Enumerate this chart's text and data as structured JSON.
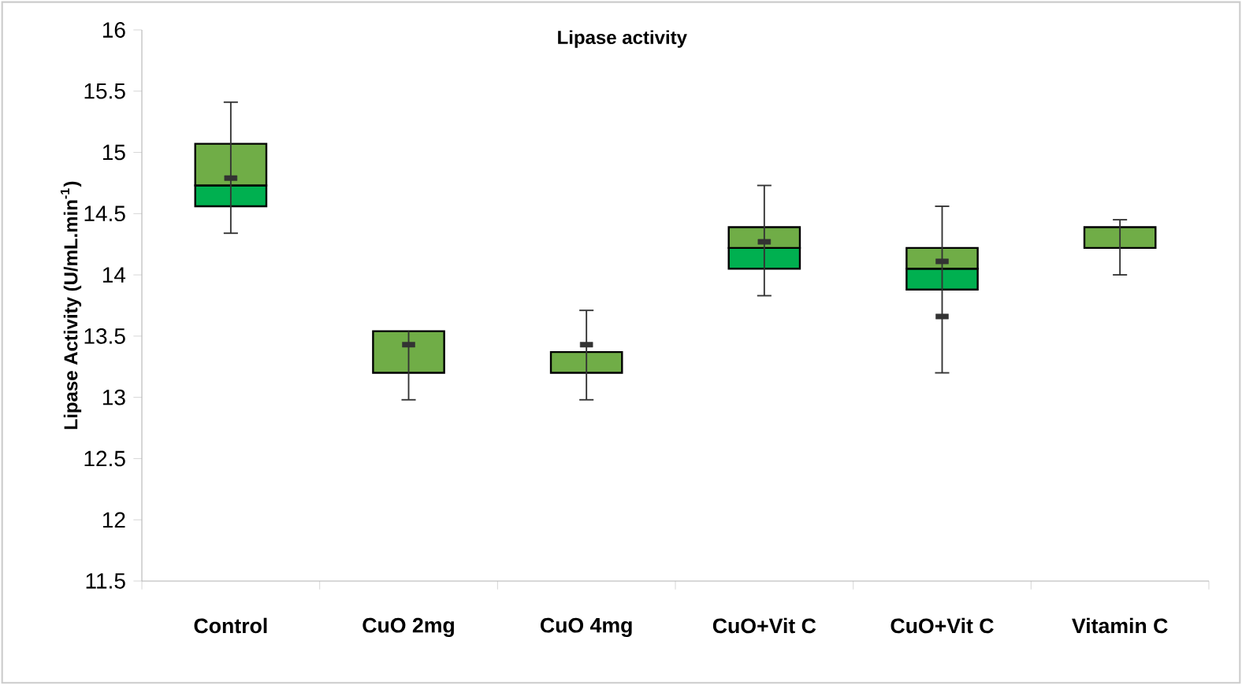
{
  "chart_data": {
    "type": "box",
    "title": "Lipase activity",
    "ylabel": "Lipase Activity  (U/mL.min$^{-1}$)",
    "categories": [
      "Control",
      "CuO 2mg",
      "CuO 4mg",
      "CuO+Vit C",
      "CuO+Vit C",
      "Vitamin C"
    ],
    "colors": [
      [
        "#00b050",
        "#70ad47"
      ],
      [
        "#00b050",
        "#70ad47"
      ],
      [
        "#00b050",
        "#70ad47"
      ],
      [
        "#00b050",
        "#70ad47"
      ],
      [
        "#00b050",
        "#70ad47"
      ],
      [
        "#00b050",
        "#70ad47"
      ]
    ],
    "boxes": [
      {
        "low": 14.34,
        "q1": 14.56,
        "median": 14.73,
        "q3": 15.07,
        "high": 15.41,
        "mean": 14.79
      },
      {
        "low": 12.98,
        "q1": 13.2,
        "median": 13.2,
        "q3": 13.54,
        "high": 13.54,
        "mean": 13.43
      },
      {
        "low": 12.98,
        "q1": 13.2,
        "median": 13.2,
        "q3": 13.37,
        "high": 13.71,
        "mean": 13.43
      },
      {
        "low": 13.83,
        "q1": 14.05,
        "median": 14.22,
        "q3": 14.39,
        "high": 14.73,
        "mean": 14.27
      },
      {
        "low": 13.2,
        "q1": 13.88,
        "median": 14.05,
        "q3": 14.22,
        "high": 14.56,
        "mean": 14.11,
        "outliers": [
          13.66
        ]
      },
      {
        "low": 14.0,
        "q1": 14.22,
        "median": 14.22,
        "q3": 14.39,
        "high": 14.45
      }
    ],
    "ylim": [
      11.5,
      16
    ],
    "yticks": [
      11.5,
      12,
      12.5,
      13,
      13.5,
      14,
      14.5,
      15,
      15.5,
      16
    ],
    "grid": false
  }
}
